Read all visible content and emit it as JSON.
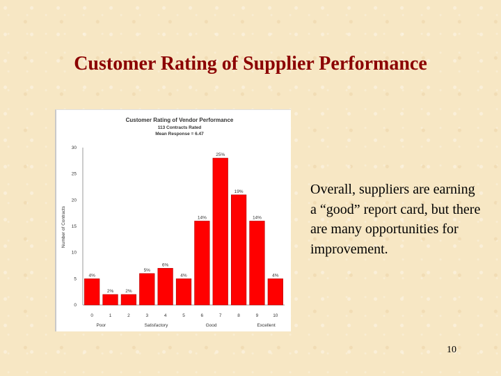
{
  "slide": {
    "title": "Customer Rating of Supplier Performance",
    "body_text": "Overall, suppliers are earning a “good” report card, but there are many opportunities for improvement.",
    "page_number": "10"
  },
  "chart_data": {
    "type": "bar",
    "title": "Customer Rating of Vendor Performance",
    "subtitle_lines": [
      "113 Contracts Rated",
      "Mean Response = 6.47"
    ],
    "ylabel": "Number of Contracts",
    "xlabel": "",
    "categories": [
      "0",
      "1",
      "2",
      "3",
      "4",
      "5",
      "6",
      "7",
      "8",
      "9",
      "10"
    ],
    "values": [
      5,
      2,
      2,
      6,
      7,
      5,
      16,
      28,
      21,
      16,
      5
    ],
    "data_labels": [
      "4%",
      "2%",
      "2%",
      "5%",
      "6%",
      "4%",
      "14%",
      "25%",
      "19%",
      "14%",
      "4%"
    ],
    "category_group_labels": [
      {
        "label": "Poor",
        "at": 0.5
      },
      {
        "label": "Satisfactory",
        "at": 3.5
      },
      {
        "label": "Good",
        "at": 6.5
      },
      {
        "label": "Excellent",
        "at": 9.5
      }
    ],
    "yticks": [
      "0",
      "5",
      "10",
      "15",
      "20",
      "25",
      "30"
    ],
    "ylim": [
      0,
      30
    ],
    "grid": false,
    "bar_color": "#ff0000"
  }
}
